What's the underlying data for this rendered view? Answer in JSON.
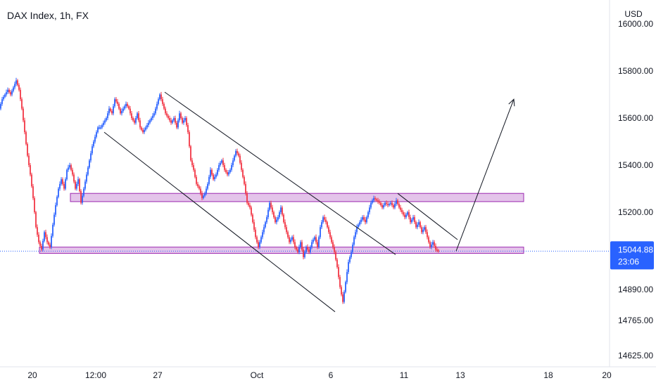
{
  "chart_data": {
    "type": "candlestick",
    "title": "DAX Index, 1h, FX",
    "currency": "USD",
    "y_ticks": [
      "16000.00",
      "15800.00",
      "15600.00",
      "15400.00",
      "15200.00",
      "14890.00",
      "14765.00",
      "14625.00"
    ],
    "x_ticks": [
      "20",
      "12:00",
      "27",
      "Oct",
      "6",
      "11",
      "13",
      "18",
      "20"
    ],
    "last_price": "15044.88",
    "countdown": "23:06",
    "colors": {
      "up": "#2962ff",
      "down": "#f23645",
      "zone_fill": "#ce93d8",
      "zone_stroke": "#9c27b0",
      "price_line": "#2962ff",
      "annotation": "#131722"
    },
    "price_path": [
      [
        0,
        15640
      ],
      [
        4,
        15680
      ],
      [
        8,
        15700
      ],
      [
        12,
        15720
      ],
      [
        16,
        15700
      ],
      [
        20,
        15730
      ],
      [
        24,
        15760
      ],
      [
        28,
        15720
      ],
      [
        32,
        15640
      ],
      [
        36,
        15540
      ],
      [
        40,
        15440
      ],
      [
        44,
        15360
      ],
      [
        48,
        15260
      ],
      [
        52,
        15140
      ],
      [
        56,
        15080
      ],
      [
        60,
        15050
      ],
      [
        64,
        15120
      ],
      [
        68,
        15080
      ],
      [
        72,
        15060
      ],
      [
        76,
        15150
      ],
      [
        80,
        15230
      ],
      [
        84,
        15300
      ],
      [
        88,
        15340
      ],
      [
        92,
        15300
      ],
      [
        96,
        15380
      ],
      [
        100,
        15400
      ],
      [
        104,
        15360
      ],
      [
        108,
        15300
      ],
      [
        112,
        15340
      ],
      [
        116,
        15240
      ],
      [
        120,
        15300
      ],
      [
        124,
        15360
      ],
      [
        128,
        15420
      ],
      [
        132,
        15480
      ],
      [
        136,
        15520
      ],
      [
        140,
        15560
      ],
      [
        144,
        15560
      ],
      [
        148,
        15580
      ],
      [
        152,
        15600
      ],
      [
        156,
        15640
      ],
      [
        160,
        15620
      ],
      [
        164,
        15680
      ],
      [
        168,
        15660
      ],
      [
        172,
        15620
      ],
      [
        176,
        15640
      ],
      [
        180,
        15660
      ],
      [
        184,
        15640
      ],
      [
        188,
        15600
      ],
      [
        192,
        15580
      ],
      [
        196,
        15620
      ],
      [
        200,
        15560
      ],
      [
        204,
        15540
      ],
      [
        208,
        15560
      ],
      [
        212,
        15580
      ],
      [
        216,
        15600
      ],
      [
        220,
        15620
      ],
      [
        224,
        15660
      ],
      [
        228,
        15700
      ],
      [
        232,
        15660
      ],
      [
        236,
        15620
      ],
      [
        240,
        15600
      ],
      [
        244,
        15580
      ],
      [
        248,
        15600
      ],
      [
        252,
        15560
      ],
      [
        256,
        15620
      ],
      [
        260,
        15580
      ],
      [
        264,
        15600
      ],
      [
        268,
        15540
      ],
      [
        272,
        15420
      ],
      [
        276,
        15380
      ],
      [
        280,
        15320
      ],
      [
        284,
        15300
      ],
      [
        288,
        15260
      ],
      [
        292,
        15280
      ],
      [
        296,
        15320
      ],
      [
        300,
        15380
      ],
      [
        304,
        15340
      ],
      [
        308,
        15360
      ],
      [
        312,
        15400
      ],
      [
        316,
        15420
      ],
      [
        320,
        15380
      ],
      [
        324,
        15360
      ],
      [
        328,
        15380
      ],
      [
        332,
        15420
      ],
      [
        336,
        15460
      ],
      [
        340,
        15440
      ],
      [
        344,
        15380
      ],
      [
        348,
        15320
      ],
      [
        352,
        15240
      ],
      [
        356,
        15220
      ],
      [
        360,
        15160
      ],
      [
        364,
        15100
      ],
      [
        368,
        15060
      ],
      [
        372,
        15100
      ],
      [
        376,
        15140
      ],
      [
        380,
        15180
      ],
      [
        384,
        15240
      ],
      [
        388,
        15200
      ],
      [
        392,
        15160
      ],
      [
        396,
        15180
      ],
      [
        400,
        15220
      ],
      [
        404,
        15160
      ],
      [
        408,
        15120
      ],
      [
        412,
        15080
      ],
      [
        416,
        15100
      ],
      [
        420,
        15060
      ],
      [
        424,
        15040
      ],
      [
        428,
        15080
      ],
      [
        432,
        15020
      ],
      [
        436,
        15060
      ],
      [
        440,
        15040
      ],
      [
        444,
        15080
      ],
      [
        448,
        15100
      ],
      [
        452,
        15060
      ],
      [
        456,
        15140
      ],
      [
        460,
        15180
      ],
      [
        464,
        15160
      ],
      [
        468,
        15120
      ],
      [
        472,
        15080
      ],
      [
        476,
        15040
      ],
      [
        480,
        14980
      ],
      [
        484,
        14900
      ],
      [
        488,
        14840
      ],
      [
        492,
        14920
      ],
      [
        496,
        15000
      ],
      [
        500,
        15040
      ],
      [
        504,
        15100
      ],
      [
        508,
        15140
      ],
      [
        512,
        15160
      ],
      [
        516,
        15180
      ],
      [
        520,
        15160
      ],
      [
        524,
        15200
      ],
      [
        528,
        15240
      ],
      [
        532,
        15260
      ],
      [
        536,
        15250
      ],
      [
        540,
        15240
      ],
      [
        544,
        15220
      ],
      [
        548,
        15240
      ],
      [
        552,
        15230
      ],
      [
        556,
        15240
      ],
      [
        560,
        15220
      ],
      [
        564,
        15250
      ],
      [
        568,
        15220
      ],
      [
        572,
        15200
      ],
      [
        576,
        15180
      ],
      [
        580,
        15200
      ],
      [
        584,
        15160
      ],
      [
        588,
        15180
      ],
      [
        592,
        15140
      ],
      [
        596,
        15160
      ],
      [
        600,
        15120
      ],
      [
        604,
        15140
      ],
      [
        608,
        15100
      ],
      [
        612,
        15060
      ],
      [
        616,
        15080
      ],
      [
        620,
        15050
      ],
      [
        624,
        15044
      ]
    ],
    "zones": [
      {
        "price_top": 15280,
        "price_bottom": 15245,
        "x_start": 100,
        "x_end": 744
      },
      {
        "price_top": 15060,
        "price_bottom": 15035,
        "x_start": 56,
        "x_end": 744
      }
    ],
    "trendlines": [
      {
        "p1": [
          234,
          15710
        ],
        "p2": [
          562,
          15030
        ]
      },
      {
        "p1": [
          148,
          15540
        ],
        "p2": [
          476,
          14800
        ]
      },
      {
        "p1": [
          565,
          15280
        ],
        "p2": [
          650,
          15090
        ]
      }
    ],
    "projection_arrow": {
      "p1": [
        648,
        15044
      ],
      "p2": [
        730,
        15680
      ]
    },
    "price_line": 15044
  }
}
